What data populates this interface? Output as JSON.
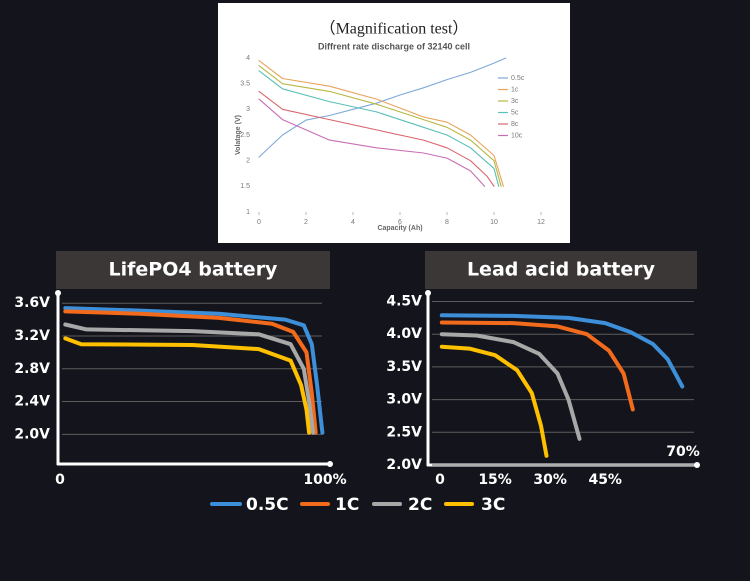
{
  "chart_data": [
    {
      "type": "line",
      "title": "（Magnification test）",
      "subtitle": "Diffrent rate discharge of 32140 cell",
      "x_label": "Capacity (Ah)",
      "y_label": "Volatage (V)",
      "xlim": [
        0,
        12
      ],
      "xticks": [
        0,
        2,
        4,
        6,
        8,
        10,
        12
      ],
      "ylim": [
        1,
        4
      ],
      "yticks": [
        1,
        1.5,
        2,
        2.5,
        3,
        3.5,
        4
      ],
      "grid": false,
      "series": [
        {
          "name": "0.5c",
          "color": "#7fa9d9",
          "x": [
            0,
            1,
            2,
            3,
            4,
            5,
            6,
            7,
            8,
            9,
            10,
            10.5
          ],
          "values": [
            2.07,
            2.5,
            2.79,
            2.88,
            3.0,
            3.12,
            3.28,
            3.42,
            3.58,
            3.72,
            3.9,
            4.0
          ]
        },
        {
          "name": "1c",
          "color": "#e8a35a",
          "x": [
            0,
            1,
            3,
            5,
            7,
            8,
            9,
            10,
            10.4
          ],
          "values": [
            3.95,
            3.6,
            3.45,
            3.2,
            2.85,
            2.75,
            2.5,
            2.1,
            1.5
          ]
        },
        {
          "name": "3c",
          "color": "#b7b843",
          "x": [
            0,
            1,
            3,
            5,
            7,
            8,
            9,
            10,
            10.3
          ],
          "values": [
            3.85,
            3.5,
            3.35,
            3.1,
            2.8,
            2.65,
            2.4,
            2.0,
            1.5
          ]
        },
        {
          "name": "5c",
          "color": "#5bbfb8",
          "x": [
            0,
            1,
            3,
            5,
            7,
            8,
            9,
            10,
            10.2
          ],
          "values": [
            3.75,
            3.4,
            3.15,
            2.95,
            2.65,
            2.5,
            2.25,
            1.85,
            1.5
          ]
        },
        {
          "name": "8c",
          "color": "#d9676f",
          "x": [
            0,
            1,
            3,
            5,
            7,
            8,
            9,
            9.7,
            10
          ],
          "values": [
            3.35,
            3.0,
            2.8,
            2.6,
            2.4,
            2.25,
            2.0,
            1.7,
            1.5
          ]
        },
        {
          "name": "10c",
          "color": "#c86fb5",
          "x": [
            0,
            1,
            3,
            5,
            7,
            8,
            9,
            9.6
          ],
          "values": [
            3.2,
            2.8,
            2.4,
            2.25,
            2.15,
            2.05,
            1.8,
            1.5
          ]
        }
      ]
    },
    {
      "type": "line",
      "title": "LifePO4 battery",
      "xlim": [
        0,
        100
      ],
      "xticks": [
        0,
        {
          "value": 100,
          "label": "100%"
        }
      ],
      "ylim": [
        1.65,
        3.7
      ],
      "yticks": [
        {
          "value": 2.0,
          "label": "2.0V"
        },
        {
          "value": 2.4,
          "label": "2.4V"
        },
        {
          "value": 2.8,
          "label": "2.8V"
        },
        {
          "value": 3.2,
          "label": "3.2V"
        },
        {
          "value": 3.6,
          "label": "3.6V"
        }
      ],
      "grid": true,
      "series": [
        {
          "name": "0.5C",
          "color": "#3d8fd9",
          "x": [
            2,
            30,
            60,
            85,
            92,
            95,
            97,
            99
          ],
          "values": [
            3.54,
            3.51,
            3.47,
            3.4,
            3.33,
            3.1,
            2.6,
            2.02
          ]
        },
        {
          "name": "1C",
          "color": "#f26a1b",
          "x": [
            2,
            30,
            60,
            80,
            88,
            93,
            95,
            96.5
          ],
          "values": [
            3.5,
            3.47,
            3.42,
            3.35,
            3.25,
            3.0,
            2.5,
            2.02
          ]
        },
        {
          "name": "2C",
          "color": "#a8a8a8",
          "x": [
            2,
            10,
            50,
            75,
            87,
            92,
            94,
            95.5
          ],
          "values": [
            3.34,
            3.28,
            3.26,
            3.22,
            3.1,
            2.8,
            2.4,
            2.02
          ]
        },
        {
          "name": "3C",
          "color": "#ffc000",
          "x": [
            2,
            8,
            50,
            75,
            87,
            91,
            93,
            94
          ],
          "values": [
            3.17,
            3.1,
            3.09,
            3.04,
            2.9,
            2.6,
            2.3,
            2.02
          ]
        }
      ]
    },
    {
      "type": "line",
      "title": "Lead acid battery",
      "xlim": [
        0,
        70
      ],
      "xticks": [
        0,
        {
          "value": 15,
          "label": "15%"
        },
        {
          "value": 30,
          "label": "30%"
        },
        {
          "value": 45,
          "label": "45%"
        },
        {
          "value": 70,
          "label": "70%"
        }
      ],
      "ylim": [
        2.0,
        4.6
      ],
      "yticks": [
        {
          "value": 2.0,
          "label": "2.0V"
        },
        {
          "value": 2.5,
          "label": "2.5V"
        },
        {
          "value": 3.0,
          "label": "3.0V"
        },
        {
          "value": 3.5,
          "label": "3.5V"
        },
        {
          "value": 4.0,
          "label": "4.0V"
        },
        {
          "value": 4.5,
          "label": "4.5V"
        }
      ],
      "grid": true,
      "series": [
        {
          "color": "#3d8fd9",
          "x": [
            0.5,
            20,
            35,
            45,
            52,
            58,
            62,
            66
          ],
          "values": [
            4.29,
            4.28,
            4.25,
            4.17,
            4.03,
            3.85,
            3.62,
            3.2
          ]
        },
        {
          "color": "#f26a1b",
          "x": [
            0.5,
            20,
            32,
            40,
            46,
            50,
            52.5
          ],
          "values": [
            4.18,
            4.17,
            4.12,
            4.0,
            3.75,
            3.4,
            2.85
          ]
        },
        {
          "color": "#a8a8a8",
          "x": [
            0.5,
            10,
            20,
            27,
            32,
            35,
            38
          ],
          "values": [
            4.0,
            3.98,
            3.88,
            3.7,
            3.4,
            3.0,
            2.4
          ]
        },
        {
          "color": "#ffc000",
          "x": [
            0.5,
            8,
            15,
            21,
            25,
            27.5,
            29
          ],
          "values": [
            3.81,
            3.78,
            3.68,
            3.45,
            3.1,
            2.6,
            2.14
          ]
        }
      ]
    }
  ]
}
